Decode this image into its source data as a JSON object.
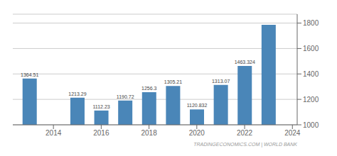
{
  "chart_data": {
    "type": "bar",
    "x": [
      2013,
      2015,
      2016,
      2017,
      2018,
      2019,
      2020,
      2021,
      2022,
      2023
    ],
    "values": [
      1364.51,
      1213.29,
      1112.23,
      1190.72,
      1256.3,
      1305.21,
      1120.832,
      1313.07,
      1463.324,
      1786.0
    ],
    "value_labels": [
      "1364.51",
      "1213.29",
      "1112.23",
      "1190.72",
      "1256.3",
      "1305.21",
      "1120.832",
      "1313.07",
      "1463.324",
      null
    ],
    "data_labels": true,
    "color": "#4a86b8",
    "xlim": [
      2012.3,
      2024.2
    ],
    "xticks": [
      2014,
      2016,
      2018,
      2020,
      2022,
      2024
    ],
    "ylim": [
      1000,
      1870
    ],
    "yticks": [
      1000,
      1200,
      1400,
      1600,
      1800
    ],
    "grid": true,
    "annotations": [
      "TRADINGECONOMICS.COM | WORLD BANK"
    ]
  }
}
